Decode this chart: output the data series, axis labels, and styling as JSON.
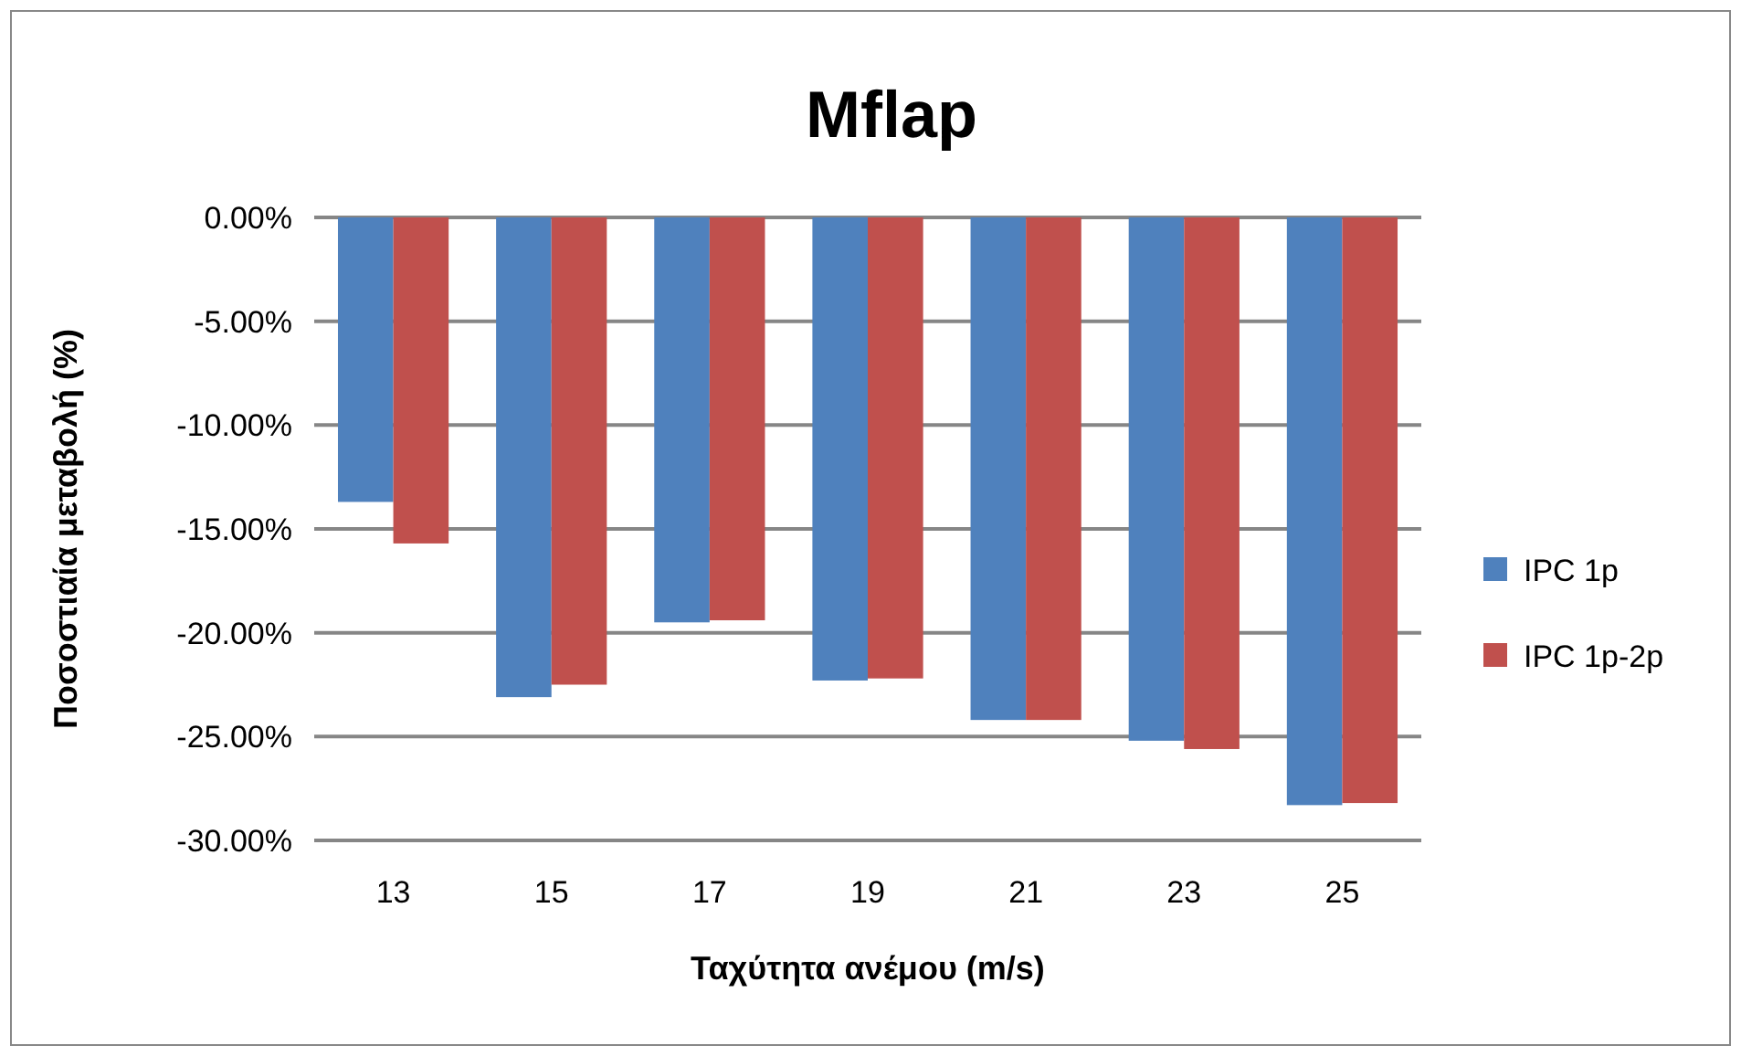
{
  "chart_data": {
    "type": "bar",
    "title": "Mflap",
    "xlabel": "Ταχύτητα ανέμου (m/s)",
    "ylabel": "Ποσοστιαία μεταβολή (%)",
    "categories": [
      "13",
      "15",
      "17",
      "19",
      "21",
      "23",
      "25"
    ],
    "series": [
      {
        "name": "IPC 1p",
        "color": "#4f81bd",
        "values": [
          -13.7,
          -23.1,
          -19.5,
          -22.3,
          -24.2,
          -25.2,
          -28.3
        ]
      },
      {
        "name": "IPC 1p-2p",
        "color": "#c0504d",
        "values": [
          -15.7,
          -22.5,
          -19.4,
          -22.2,
          -24.2,
          -25.6,
          -28.2
        ]
      }
    ],
    "ylim": [
      -30,
      0
    ],
    "yticks": [
      {
        "value": -30,
        "label": "-30.00%"
      },
      {
        "value": -25,
        "label": "-25.00%"
      },
      {
        "value": -20,
        "label": "-20.00%"
      },
      {
        "value": -15,
        "label": "-15.00%"
      },
      {
        "value": -10,
        "label": "-10.00%"
      },
      {
        "value": -5,
        "label": "-5.00%"
      },
      {
        "value": 0,
        "label": "0.00%"
      }
    ],
    "grid": "y",
    "legend": "right"
  }
}
